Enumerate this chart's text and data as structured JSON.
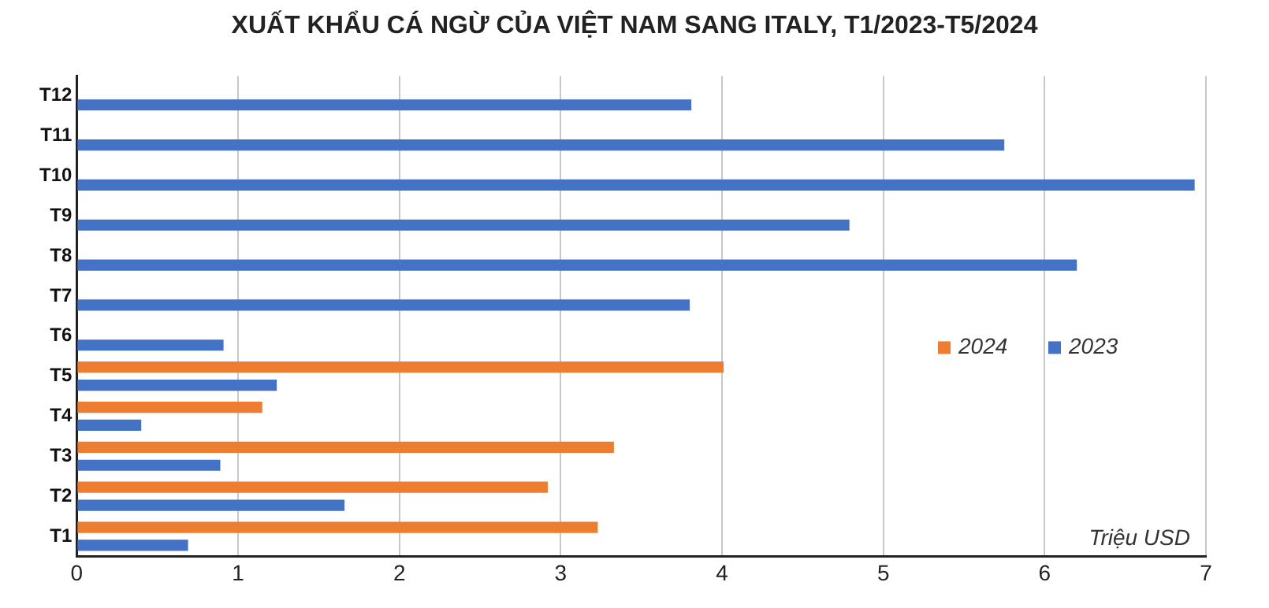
{
  "chart_data": {
    "type": "bar",
    "orientation": "horizontal",
    "title": "XUẤT KHẨU CÁ NGỪ CỦA VIỆT NAM SANG ITALY, T1/2023-T5/2024",
    "categories": [
      "T12",
      "T11",
      "T10",
      "T9",
      "T8",
      "T7",
      "T6",
      "T5",
      "T4",
      "T3",
      "T2",
      "T1"
    ],
    "series": [
      {
        "name": "2024",
        "color": "#ed7d31",
        "values": [
          null,
          null,
          null,
          null,
          null,
          null,
          null,
          4.01,
          1.15,
          3.33,
          2.92,
          3.23
        ]
      },
      {
        "name": "2023",
        "color": "#4472c4",
        "values": [
          3.81,
          5.75,
          6.93,
          4.79,
          6.2,
          3.8,
          0.91,
          1.24,
          0.4,
          0.89,
          1.66,
          0.69
        ]
      }
    ],
    "xlim": [
      0,
      7
    ],
    "xticks": [
      0,
      1,
      2,
      3,
      4,
      5,
      6,
      7
    ],
    "grid": "x",
    "legend": "right",
    "annotations": [
      "Triệu USD"
    ]
  }
}
